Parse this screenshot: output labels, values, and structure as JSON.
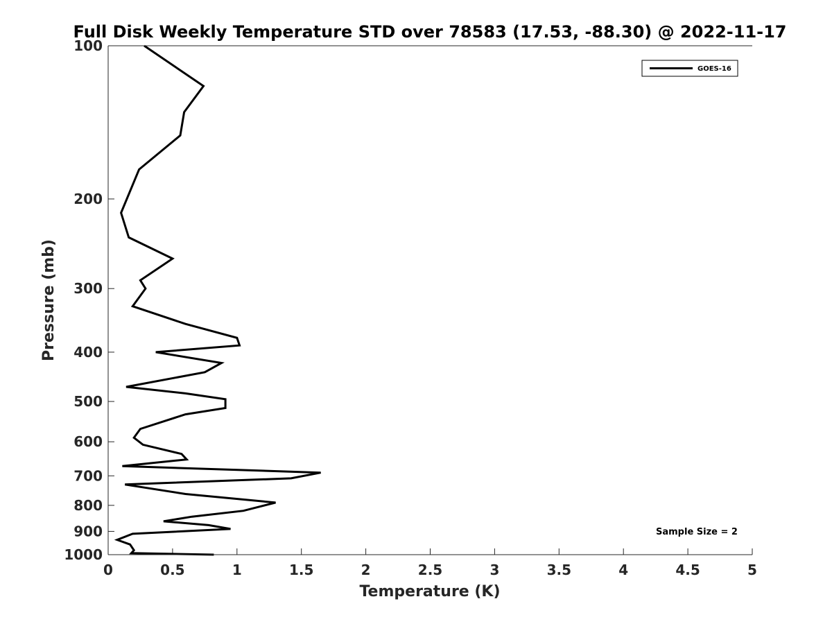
{
  "chart_data": {
    "type": "line",
    "title": "Full Disk Weekly Temperature STD over 78583 (17.53, -88.30) @ 2022-11-17",
    "xlabel": "Temperature (K)",
    "ylabel": "Pressure (mb)",
    "xlim": [
      0,
      5
    ],
    "ylim": [
      1000,
      100
    ],
    "y_scale": "log",
    "y_reversed": true,
    "x_ticks": [
      0,
      0.5,
      1,
      1.5,
      2,
      2.5,
      3,
      3.5,
      4,
      4.5,
      5
    ],
    "x_tick_labels": [
      "0",
      "0.5",
      "1",
      "1.5",
      "2",
      "2.5",
      "3",
      "3.5",
      "4",
      "4.5",
      "5"
    ],
    "y_ticks": [
      100,
      200,
      300,
      400,
      500,
      600,
      700,
      800,
      900,
      1000
    ],
    "y_tick_labels": [
      "100",
      "200",
      "300",
      "400",
      "500",
      "600",
      "700",
      "800",
      "900",
      "1000"
    ],
    "grid": false,
    "legend_position": "top-right",
    "series": [
      {
        "name": "GOES-16",
        "color": "#000000",
        "x": [
          0.28,
          0.74,
          0.59,
          0.56,
          0.24,
          0.1,
          0.16,
          0.5,
          0.25,
          0.29,
          0.19,
          0.6,
          1.0,
          1.02,
          0.37,
          0.88,
          0.75,
          0.14,
          0.6,
          0.91,
          0.91,
          0.6,
          0.25,
          0.2,
          0.27,
          0.57,
          0.61,
          0.11,
          1.65,
          1.42,
          0.13,
          0.6,
          1.3,
          1.05,
          0.65,
          0.43,
          0.78,
          0.95,
          0.19,
          0.07,
          0.17,
          0.2,
          0.18,
          0.82
        ],
        "y": [
          100,
          120,
          135,
          150,
          175,
          213,
          238,
          262,
          289,
          300,
          325,
          352,
          375,
          388,
          400,
          420,
          438,
          468,
          482,
          495,
          515,
          530,
          566,
          589,
          608,
          634,
          650,
          670,
          690,
          708,
          728,
          760,
          790,
          820,
          842,
          860,
          875,
          890,
          910,
          935,
          955,
          980,
          993,
          1000
        ]
      }
    ],
    "annotations": [
      "Sample Size = 2"
    ]
  }
}
